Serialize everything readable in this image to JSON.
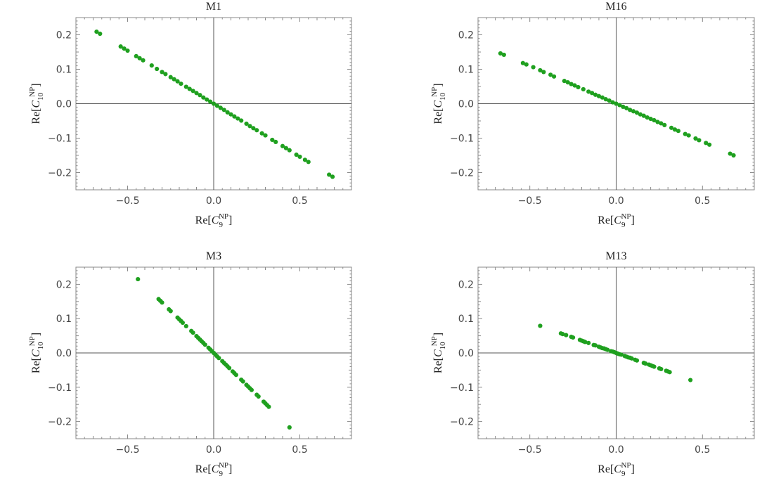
{
  "chart_data": [
    {
      "type": "scatter",
      "title": "M1",
      "xlabel": {
        "prefix": "Re[",
        "symbol": "C",
        "sub": "9",
        "sup": "NP",
        "suffix": "]"
      },
      "ylabel": {
        "prefix": "Re[",
        "symbol": "C",
        "sub": "10",
        "sup": "NP",
        "suffix": "]"
      },
      "xlim": [
        -0.8,
        0.8
      ],
      "ylim": [
        -0.25,
        0.25
      ],
      "xticks": [
        {
          "v": -0.5,
          "label": "−0.5"
        },
        {
          "v": 0,
          "label": "0.0"
        },
        {
          "v": 0.5,
          "label": "0.5"
        }
      ],
      "yticks": [
        {
          "v": -0.2,
          "label": "−0.2"
        },
        {
          "v": -0.1,
          "label": "−0.1"
        },
        {
          "v": 0,
          "label": "0.0"
        },
        {
          "v": 0.1,
          "label": "0.1"
        },
        {
          "v": 0.2,
          "label": "0.2"
        }
      ],
      "color": "#1fa01f",
      "series": [
        {
          "x": [
            -0.68,
            -0.66,
            -0.54,
            -0.52,
            -0.5,
            -0.45,
            -0.43,
            -0.41,
            -0.36,
            -0.33,
            -0.3,
            -0.28,
            -0.25,
            -0.23,
            -0.21,
            -0.19,
            -0.16,
            -0.14,
            -0.12,
            -0.1,
            -0.08,
            -0.06,
            -0.04,
            -0.02,
            0.0,
            0.02,
            0.04,
            0.06,
            0.08,
            0.1,
            0.12,
            0.14,
            0.16,
            0.19,
            0.21,
            0.23,
            0.25,
            0.28,
            0.3,
            0.34,
            0.36,
            0.4,
            0.42,
            0.44,
            0.48,
            0.5,
            0.53,
            0.55,
            0.67,
            0.69
          ],
          "y": [
            0.209,
            0.203,
            0.166,
            0.16,
            0.154,
            0.138,
            0.132,
            0.126,
            0.111,
            0.101,
            0.092,
            0.086,
            0.077,
            0.071,
            0.065,
            0.058,
            0.049,
            0.043,
            0.037,
            0.031,
            0.025,
            0.018,
            0.012,
            0.006,
            0.0,
            -0.006,
            -0.012,
            -0.018,
            -0.025,
            -0.031,
            -0.037,
            -0.043,
            -0.049,
            -0.058,
            -0.065,
            -0.071,
            -0.077,
            -0.086,
            -0.092,
            -0.105,
            -0.111,
            -0.123,
            -0.129,
            -0.135,
            -0.148,
            -0.154,
            -0.163,
            -0.169,
            -0.206,
            -0.212
          ]
        }
      ]
    },
    {
      "type": "scatter",
      "title": "M16",
      "xlabel": {
        "prefix": "Re[",
        "symbol": "C",
        "sub": "9",
        "sup": "NP",
        "suffix": "]"
      },
      "ylabel": {
        "prefix": "Re[",
        "symbol": "C",
        "sub": "10",
        "sup": "NP",
        "suffix": "]"
      },
      "xlim": [
        -0.8,
        0.8
      ],
      "ylim": [
        -0.25,
        0.25
      ],
      "xticks": [
        {
          "v": -0.5,
          "label": "−0.5"
        },
        {
          "v": 0,
          "label": "0.0"
        },
        {
          "v": 0.5,
          "label": "0.5"
        }
      ],
      "yticks": [
        {
          "v": -0.2,
          "label": "−0.2"
        },
        {
          "v": -0.1,
          "label": "−0.1"
        },
        {
          "v": 0,
          "label": "0.0"
        },
        {
          "v": 0.1,
          "label": "0.1"
        },
        {
          "v": 0.2,
          "label": "0.2"
        }
      ],
      "color": "#1fa01f",
      "series": [
        {
          "x": [
            -0.67,
            -0.65,
            -0.54,
            -0.52,
            -0.48,
            -0.44,
            -0.42,
            -0.38,
            -0.36,
            -0.3,
            -0.28,
            -0.26,
            -0.24,
            -0.22,
            -0.19,
            -0.16,
            -0.14,
            -0.12,
            -0.1,
            -0.08,
            -0.06,
            -0.04,
            -0.02,
            0.0,
            0.02,
            0.04,
            0.06,
            0.08,
            0.1,
            0.12,
            0.14,
            0.16,
            0.18,
            0.2,
            0.22,
            0.24,
            0.26,
            0.28,
            0.32,
            0.34,
            0.36,
            0.4,
            0.42,
            0.46,
            0.48,
            0.52,
            0.54,
            0.66,
            0.68
          ],
          "y": [
            0.146,
            0.142,
            0.118,
            0.114,
            0.106,
            0.097,
            0.092,
            0.084,
            0.079,
            0.066,
            0.062,
            0.057,
            0.053,
            0.048,
            0.042,
            0.035,
            0.031,
            0.026,
            0.022,
            0.018,
            0.013,
            0.009,
            0.004,
            0.0,
            -0.004,
            -0.009,
            -0.013,
            -0.018,
            -0.022,
            -0.026,
            -0.031,
            -0.035,
            -0.04,
            -0.044,
            -0.048,
            -0.053,
            -0.057,
            -0.062,
            -0.07,
            -0.075,
            -0.079,
            -0.088,
            -0.092,
            -0.101,
            -0.106,
            -0.114,
            -0.119,
            -0.145,
            -0.15
          ]
        }
      ]
    },
    {
      "type": "scatter",
      "title": "M3",
      "xlabel": {
        "prefix": "Re[",
        "symbol": "C",
        "sub": "9",
        "sup": "NP",
        "suffix": "]"
      },
      "ylabel": {
        "prefix": "Re[",
        "symbol": "C",
        "sub": "10",
        "sup": "NP",
        "suffix": "]"
      },
      "xlim": [
        -0.8,
        0.8
      ],
      "ylim": [
        -0.25,
        0.25
      ],
      "xticks": [
        {
          "v": -0.5,
          "label": "−0.5"
        },
        {
          "v": 0,
          "label": "0.0"
        },
        {
          "v": 0.5,
          "label": "0.5"
        }
      ],
      "yticks": [
        {
          "v": -0.2,
          "label": "−0.2"
        },
        {
          "v": -0.1,
          "label": "−0.1"
        },
        {
          "v": 0,
          "label": "0.0"
        },
        {
          "v": 0.1,
          "label": "0.1"
        },
        {
          "v": 0.2,
          "label": "0.2"
        }
      ],
      "color": "#1fa01f",
      "series": [
        {
          "x": [
            -0.44,
            -0.32,
            -0.31,
            -0.3,
            -0.26,
            -0.25,
            -0.21,
            -0.2,
            -0.19,
            -0.18,
            -0.16,
            -0.13,
            -0.12,
            -0.1,
            -0.09,
            -0.08,
            -0.07,
            -0.06,
            -0.05,
            -0.03,
            -0.02,
            -0.01,
            0.0,
            0.01,
            0.02,
            0.03,
            0.05,
            0.06,
            0.07,
            0.08,
            0.09,
            0.11,
            0.12,
            0.13,
            0.16,
            0.17,
            0.19,
            0.2,
            0.21,
            0.22,
            0.25,
            0.26,
            0.29,
            0.3,
            0.31,
            0.32,
            0.44
          ],
          "y": [
            0.215,
            0.157,
            0.152,
            0.147,
            0.127,
            0.122,
            0.103,
            0.098,
            0.093,
            0.088,
            0.078,
            0.064,
            0.059,
            0.049,
            0.044,
            0.039,
            0.034,
            0.029,
            0.024,
            0.015,
            0.01,
            0.005,
            0.0,
            -0.005,
            -0.01,
            -0.015,
            -0.024,
            -0.029,
            -0.034,
            -0.039,
            -0.044,
            -0.054,
            -0.059,
            -0.064,
            -0.078,
            -0.083,
            -0.093,
            -0.098,
            -0.103,
            -0.108,
            -0.122,
            -0.127,
            -0.142,
            -0.147,
            -0.152,
            -0.157,
            -0.217
          ]
        }
      ]
    },
    {
      "type": "scatter",
      "title": "M13",
      "xlabel": {
        "prefix": "Re[",
        "symbol": "C",
        "sub": "9",
        "sup": "NP",
        "suffix": "]"
      },
      "ylabel": {
        "prefix": "Re[",
        "symbol": "C",
        "sub": "10",
        "sup": "NP",
        "suffix": "]"
      },
      "xlim": [
        -0.8,
        0.8
      ],
      "ylim": [
        -0.25,
        0.25
      ],
      "xticks": [
        {
          "v": -0.5,
          "label": "−0.5"
        },
        {
          "v": 0,
          "label": "0.0"
        },
        {
          "v": 0.5,
          "label": "0.5"
        }
      ],
      "yticks": [
        {
          "v": -0.2,
          "label": "−0.2"
        },
        {
          "v": -0.1,
          "label": "−0.1"
        },
        {
          "v": 0,
          "label": "0.0"
        },
        {
          "v": 0.1,
          "label": "0.1"
        },
        {
          "v": 0.2,
          "label": "0.2"
        }
      ],
      "color": "#1fa01f",
      "series": [
        {
          "x": [
            -0.44,
            -0.32,
            -0.31,
            -0.29,
            -0.26,
            -0.25,
            -0.21,
            -0.2,
            -0.19,
            -0.18,
            -0.16,
            -0.13,
            -0.12,
            -0.1,
            -0.09,
            -0.08,
            -0.07,
            -0.06,
            -0.05,
            -0.03,
            -0.02,
            -0.01,
            0.0,
            0.01,
            0.02,
            0.03,
            0.05,
            0.06,
            0.07,
            0.08,
            0.09,
            0.11,
            0.12,
            0.16,
            0.17,
            0.19,
            0.2,
            0.21,
            0.22,
            0.25,
            0.26,
            0.29,
            0.3,
            0.31,
            0.43
          ],
          "y": [
            0.079,
            0.057,
            0.055,
            0.052,
            0.047,
            0.045,
            0.038,
            0.036,
            0.034,
            0.032,
            0.029,
            0.023,
            0.022,
            0.018,
            0.016,
            0.014,
            0.013,
            0.011,
            0.009,
            0.005,
            0.004,
            0.002,
            0.0,
            -0.002,
            -0.004,
            -0.005,
            -0.009,
            -0.011,
            -0.013,
            -0.014,
            -0.016,
            -0.02,
            -0.022,
            -0.029,
            -0.031,
            -0.034,
            -0.036,
            -0.038,
            -0.04,
            -0.045,
            -0.047,
            -0.052,
            -0.054,
            -0.056,
            -0.079
          ]
        }
      ]
    }
  ]
}
